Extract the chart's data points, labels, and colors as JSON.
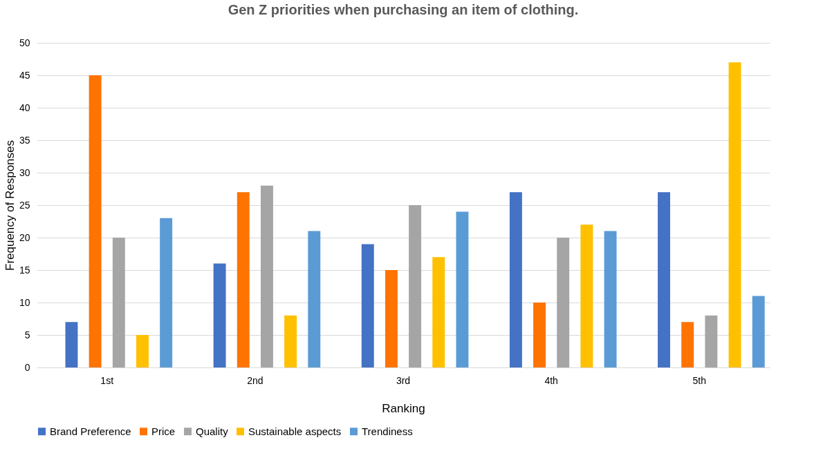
{
  "chart_data": {
    "type": "bar",
    "title": "Gen Z priorities when purchasing an item of clothing.",
    "xlabel": "Ranking",
    "ylabel": "Frequency of Responses",
    "categories": [
      "1st",
      "2nd",
      "3rd",
      "4th",
      "5th"
    ],
    "series": [
      {
        "name": "Brand Preference",
        "color": "#4472c4",
        "values": [
          7,
          16,
          19,
          27,
          27
        ]
      },
      {
        "name": "Price",
        "color": "#ff7300",
        "values": [
          45,
          27,
          15,
          10,
          7
        ]
      },
      {
        "name": "Quality",
        "color": "#a5a5a5",
        "values": [
          20,
          28,
          25,
          20,
          8
        ]
      },
      {
        "name": "Sustainable aspects",
        "color": "#ffc000",
        "values": [
          5,
          8,
          17,
          22,
          47
        ]
      },
      {
        "name": "Trendiness",
        "color": "#5b9bd5",
        "values": [
          23,
          21,
          24,
          21,
          11
        ]
      }
    ],
    "ylim": [
      0,
      50
    ],
    "yticks": [
      0,
      5,
      10,
      15,
      20,
      25,
      30,
      35,
      40,
      45,
      50
    ],
    "grid": "y",
    "legend": "bottom"
  }
}
